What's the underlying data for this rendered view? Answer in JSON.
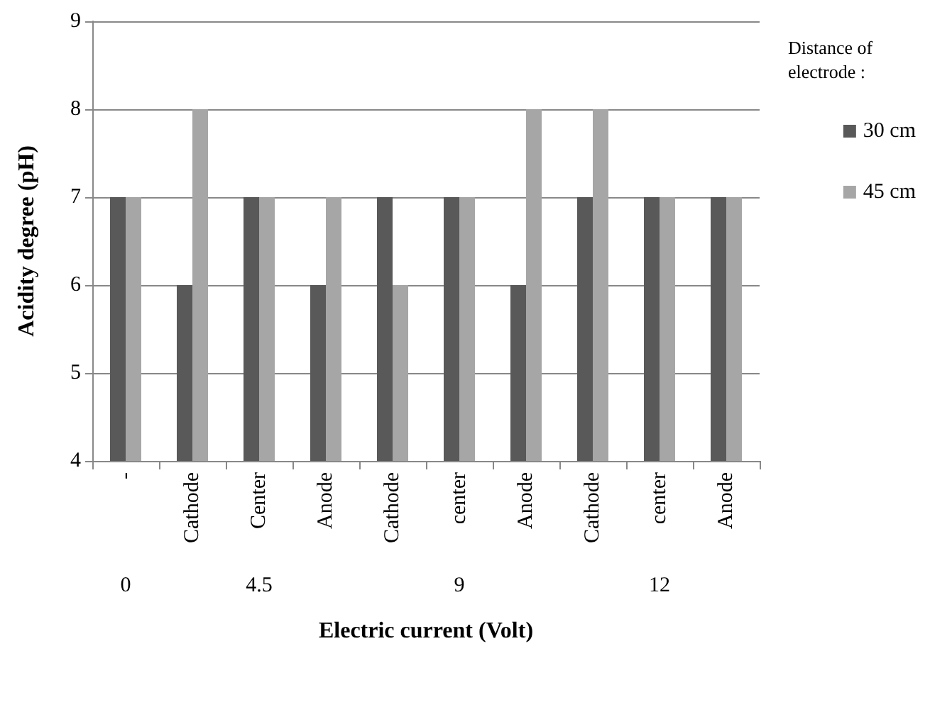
{
  "chart_data": {
    "type": "bar",
    "xlabel": "Electric current (Volt)",
    "ylabel": "Acidity degree (pH)",
    "legend_title": "Distance of electrode :",
    "categories": [
      "-",
      "Cathode",
      "Center",
      "Anode",
      "Cathode",
      "center",
      "Anode",
      "Cathode",
      "center",
      "Anode"
    ],
    "series": [
      {
        "name": "30 cm",
        "color": "#595959",
        "values": [
          7,
          6,
          7,
          6,
          7,
          7,
          6,
          7,
          7,
          7
        ]
      },
      {
        "name": "45 cm",
        "color": "#a6a6a6",
        "values": [
          7,
          8,
          7,
          7,
          6,
          7,
          8,
          8,
          7,
          7
        ]
      }
    ],
    "ylim": [
      4,
      9
    ],
    "yticks": [
      4,
      5,
      6,
      7,
      8,
      9
    ],
    "grid": "y",
    "legend": "right",
    "annotations": [
      "0",
      "4.5",
      "9",
      "12"
    ]
  }
}
